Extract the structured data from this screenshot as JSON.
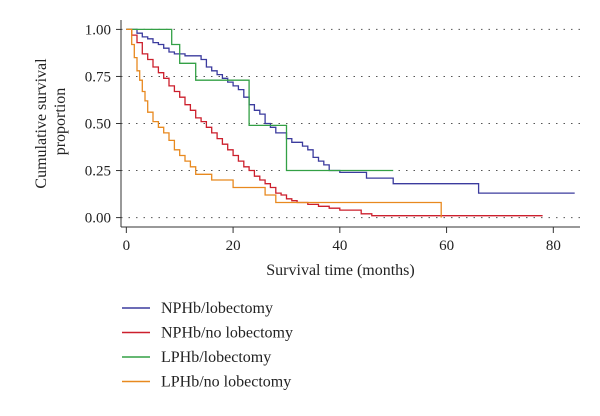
{
  "chart_data": {
    "type": "line",
    "subtype": "kaplan-meier step",
    "xlabel": "Survival time (months)",
    "ylabel": "Cumulative survival proportion",
    "ylabel_lines": [
      "Cumulative survival",
      "proportion"
    ],
    "xlim": [
      -1,
      85
    ],
    "ylim": [
      -0.05,
      1.05
    ],
    "xticks": [
      0,
      20,
      40,
      60,
      80
    ],
    "xtick_labels": [
      "0",
      "20",
      "40",
      "60",
      "80"
    ],
    "yticks": [
      0.0,
      0.25,
      0.5,
      0.75,
      1.0
    ],
    "ytick_labels": [
      "0.00",
      "0.25",
      "0.50",
      "0.75",
      "1.00"
    ],
    "grid": "horizontal dotted",
    "legend_position": "bottom-left",
    "series": [
      {
        "name": "NPHb/lobectomy",
        "color": "#3b3b9e",
        "x": [
          0,
          2,
          3,
          4,
          5,
          6,
          7,
          8,
          9,
          11,
          14,
          15,
          16,
          17,
          18,
          19,
          20,
          21,
          22,
          23,
          24,
          25,
          26,
          27,
          28,
          30,
          31,
          33,
          34,
          35,
          36,
          37,
          38,
          40,
          41,
          45,
          50,
          66,
          84
        ],
        "y": [
          1.0,
          0.98,
          0.96,
          0.95,
          0.93,
          0.92,
          0.9,
          0.88,
          0.87,
          0.86,
          0.84,
          0.8,
          0.78,
          0.76,
          0.74,
          0.72,
          0.7,
          0.68,
          0.64,
          0.6,
          0.57,
          0.55,
          0.5,
          0.48,
          0.45,
          0.42,
          0.4,
          0.38,
          0.36,
          0.32,
          0.3,
          0.28,
          0.25,
          0.24,
          0.24,
          0.21,
          0.18,
          0.13,
          0.13
        ]
      },
      {
        "name": "NPHb/no lobectomy",
        "color": "#cc1f2c",
        "x": [
          0,
          1,
          2,
          3,
          4,
          5,
          6,
          7,
          8,
          9,
          10,
          11,
          12,
          13,
          14,
          15,
          16,
          17,
          18,
          19,
          20,
          21,
          22,
          23,
          24,
          25,
          26,
          27,
          28,
          29,
          30,
          31,
          32,
          34,
          36,
          38,
          40,
          44,
          46,
          78
        ],
        "y": [
          1.0,
          0.97,
          0.93,
          0.87,
          0.84,
          0.8,
          0.77,
          0.74,
          0.7,
          0.67,
          0.64,
          0.6,
          0.57,
          0.53,
          0.51,
          0.48,
          0.45,
          0.42,
          0.39,
          0.36,
          0.33,
          0.3,
          0.27,
          0.25,
          0.22,
          0.2,
          0.18,
          0.16,
          0.13,
          0.12,
          0.1,
          0.09,
          0.08,
          0.07,
          0.06,
          0.05,
          0.04,
          0.02,
          0.01,
          0.01
        ]
      },
      {
        "name": "LPHb/lobectomy",
        "color": "#33a045",
        "x": [
          0,
          8.5,
          10,
          13,
          17,
          23,
          25,
          30,
          50
        ],
        "y": [
          1.0,
          0.92,
          0.82,
          0.73,
          0.73,
          0.49,
          0.49,
          0.25,
          0.25
        ]
      },
      {
        "name": "LPHb/no lobectomy",
        "color": "#e8891f",
        "x": [
          0,
          1,
          1.5,
          2,
          2.5,
          3,
          3.5,
          4,
          5,
          6,
          7,
          8,
          9,
          10,
          11,
          12,
          13,
          16,
          20,
          26,
          28,
          59
        ],
        "y": [
          1.0,
          0.92,
          0.85,
          0.78,
          0.73,
          0.67,
          0.62,
          0.56,
          0.51,
          0.48,
          0.45,
          0.41,
          0.36,
          0.33,
          0.3,
          0.27,
          0.23,
          0.2,
          0.16,
          0.12,
          0.08,
          0.0
        ]
      }
    ]
  }
}
